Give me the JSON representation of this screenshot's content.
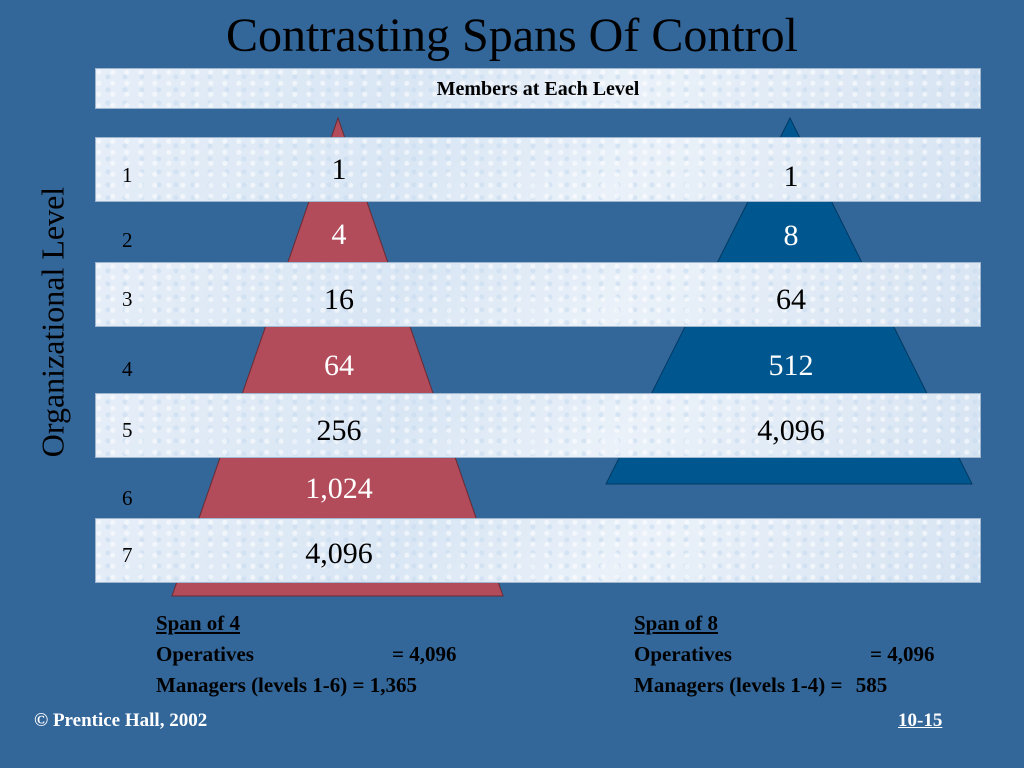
{
  "slide": {
    "title": "Contrasting Spans Of Control",
    "header": "Members at Each Level",
    "axis_label": "Organizational Level",
    "levels": [
      "1",
      "2",
      "3",
      "4",
      "5",
      "6",
      "7"
    ],
    "colors": {
      "background": "#336699",
      "left_pyramid": "#b24c5b",
      "right_pyramid": "#00578f"
    },
    "footer_left": "© Prentice Hall, 2002",
    "footer_right": "10-15"
  },
  "left": {
    "members": [
      "1",
      "4",
      "16",
      "64",
      "256",
      "1,024",
      "4,096"
    ],
    "span_title": "Span of 4",
    "operatives_label": "Operatives",
    "operatives_value": "= 4,096",
    "managers_label": "Managers (levels 1-6)",
    "managers_value": "= 1,365"
  },
  "right": {
    "members": [
      "1",
      "8",
      "64",
      "512",
      "4,096"
    ],
    "span_title": "Span of 8",
    "operatives_label": "Operatives",
    "operatives_value": "= 4,096",
    "managers_label": "Managers (levels 1-4) =",
    "managers_value": "585"
  }
}
